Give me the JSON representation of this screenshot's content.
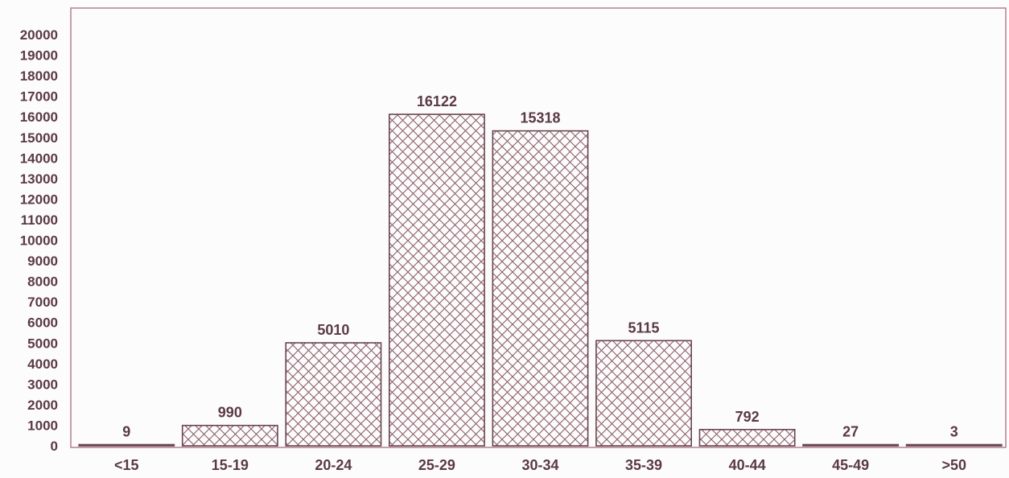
{
  "chart_data": {
    "type": "bar",
    "categories": [
      "<15",
      "15-19",
      "20-24",
      "25-29",
      "30-34",
      "35-39",
      "40-44",
      "45-49",
      ">50"
    ],
    "values": [
      9,
      990,
      5010,
      16122,
      15318,
      5115,
      792,
      27,
      3
    ],
    "data_labels": [
      "9",
      "990",
      "5010",
      "16122",
      "15318",
      "5115",
      "792",
      "27",
      "3"
    ],
    "title": "",
    "xlabel": "",
    "ylabel": "",
    "ylim": [
      0,
      20000
    ],
    "yticks": [
      0,
      1000,
      2000,
      3000,
      4000,
      5000,
      6000,
      7000,
      8000,
      9000,
      10000,
      11000,
      12000,
      13000,
      14000,
      15000,
      16000,
      17000,
      18000,
      19000,
      20000
    ],
    "grid": false,
    "legend": "none",
    "bar_pattern": "crosshatch",
    "colors": {
      "frame": "#b0808e",
      "bar_edge": "#6a4450",
      "hatch": "#8a5e6a",
      "text": "#5a3a44"
    }
  }
}
